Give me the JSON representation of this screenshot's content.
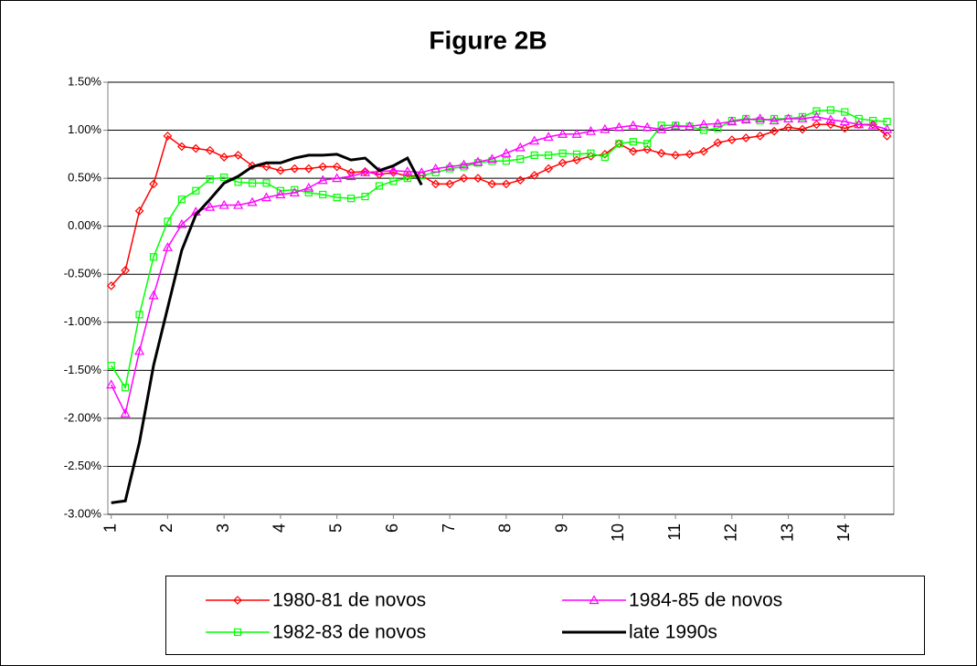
{
  "chart_data": {
    "type": "line",
    "title": "Figure 2B",
    "x": [
      1,
      1.25,
      1.5,
      1.75,
      2,
      2.25,
      2.5,
      2.75,
      3,
      3.25,
      3.5,
      3.75,
      4,
      4.25,
      4.5,
      4.75,
      5,
      5.25,
      5.5,
      5.75,
      6,
      6.25,
      6.5,
      6.75,
      7,
      7.25,
      7.5,
      7.75,
      8,
      8.25,
      8.5,
      8.75,
      9,
      9.25,
      9.5,
      9.75,
      10,
      10.25,
      10.5,
      10.75,
      11,
      11.25,
      11.5,
      11.75,
      12,
      12.25,
      12.5,
      12.75,
      13,
      13.25,
      13.5,
      13.75,
      14,
      14.25,
      14.5,
      14.75
    ],
    "xlim": [
      0.94,
      14.87
    ],
    "xticks": [
      1,
      2,
      3,
      4,
      5,
      6,
      7,
      8,
      9,
      10,
      11,
      12,
      13,
      14
    ],
    "ylim": [
      -3,
      1.5
    ],
    "yticks": [
      {
        "value": -3,
        "label": "-3.00%"
      },
      {
        "value": -2.5,
        "label": "-2.50%"
      },
      {
        "value": -2,
        "label": "-2.00%"
      },
      {
        "value": -1.5,
        "label": "-1.50%"
      },
      {
        "value": -1,
        "label": "-1.00%"
      },
      {
        "value": -0.5,
        "label": "-0.50%"
      },
      {
        "value": 0,
        "label": "0.00%"
      },
      {
        "value": 0.5,
        "label": "0.50%"
      },
      {
        "value": 1,
        "label": "1.00%"
      },
      {
        "value": 1.5,
        "label": "1.50%"
      }
    ],
    "grid": true,
    "series": [
      {
        "name": "1980-81 de novos",
        "color": "#ff0000",
        "marker": "diamond",
        "values": [
          -0.62,
          -0.46,
          0.16,
          0.44,
          0.94,
          0.83,
          0.81,
          0.79,
          0.72,
          0.74,
          0.63,
          0.62,
          0.58,
          0.6,
          0.6,
          0.62,
          0.62,
          0.56,
          0.57,
          0.54,
          0.56,
          0.52,
          0.53,
          0.44,
          0.44,
          0.5,
          0.5,
          0.44,
          0.44,
          0.48,
          0.53,
          0.6,
          0.66,
          0.69,
          0.73,
          0.75,
          0.86,
          0.78,
          0.8,
          0.76,
          0.74,
          0.75,
          0.78,
          0.87,
          0.9,
          0.92,
          0.94,
          0.99,
          1.03,
          1.01,
          1.06,
          1.06,
          1.02,
          1.06,
          1.06,
          0.94
        ]
      },
      {
        "name": "1982-83 de novos",
        "color": "#00ff00",
        "marker": "square",
        "values": [
          -1.45,
          -1.68,
          -0.92,
          -0.32,
          0.05,
          0.28,
          0.37,
          0.49,
          0.51,
          0.46,
          0.45,
          0.45,
          0.37,
          0.38,
          0.35,
          0.33,
          0.3,
          0.29,
          0.31,
          0.42,
          0.47,
          0.5,
          0.53,
          0.56,
          0.6,
          0.62,
          0.66,
          0.68,
          0.68,
          0.7,
          0.74,
          0.74,
          0.76,
          0.75,
          0.76,
          0.72,
          0.86,
          0.88,
          0.86,
          1.05,
          1.05,
          1.04,
          1.0,
          1.02,
          1.1,
          1.12,
          1.1,
          1.12,
          1.12,
          1.14,
          1.2,
          1.21,
          1.19,
          1.12,
          1.1,
          1.09
        ]
      },
      {
        "name": "1984-85 de novos",
        "color": "#ff00ff",
        "marker": "triangle",
        "values": [
          -1.65,
          -1.95,
          -1.3,
          -0.72,
          -0.22,
          0.02,
          0.15,
          0.2,
          0.22,
          0.22,
          0.25,
          0.3,
          0.33,
          0.35,
          0.4,
          0.48,
          0.5,
          0.52,
          0.56,
          0.57,
          0.58,
          0.57,
          0.56,
          0.6,
          0.62,
          0.64,
          0.67,
          0.7,
          0.76,
          0.82,
          0.89,
          0.93,
          0.96,
          0.96,
          0.99,
          1.01,
          1.03,
          1.05,
          1.03,
          1.01,
          1.04,
          1.04,
          1.06,
          1.07,
          1.09,
          1.11,
          1.12,
          1.1,
          1.12,
          1.12,
          1.14,
          1.11,
          1.09,
          1.06,
          1.05,
          1.01
        ]
      },
      {
        "name": "late 1990s",
        "color": "#000000",
        "marker": "none",
        "values": [
          -2.88,
          -2.86,
          -2.25,
          -1.45,
          -0.85,
          -0.25,
          0.12,
          0.28,
          0.45,
          0.52,
          0.62,
          0.66,
          0.66,
          0.71,
          0.74,
          0.74,
          0.75,
          0.69,
          0.71,
          0.58,
          0.63,
          0.71,
          0.43,
          null,
          null,
          null,
          null,
          null,
          null,
          null,
          null,
          null,
          null,
          null,
          null,
          null,
          null,
          null,
          null,
          null,
          null,
          null,
          null,
          null,
          null,
          null,
          null,
          null,
          null,
          null,
          null,
          null,
          null,
          null,
          null,
          null
        ]
      }
    ]
  }
}
